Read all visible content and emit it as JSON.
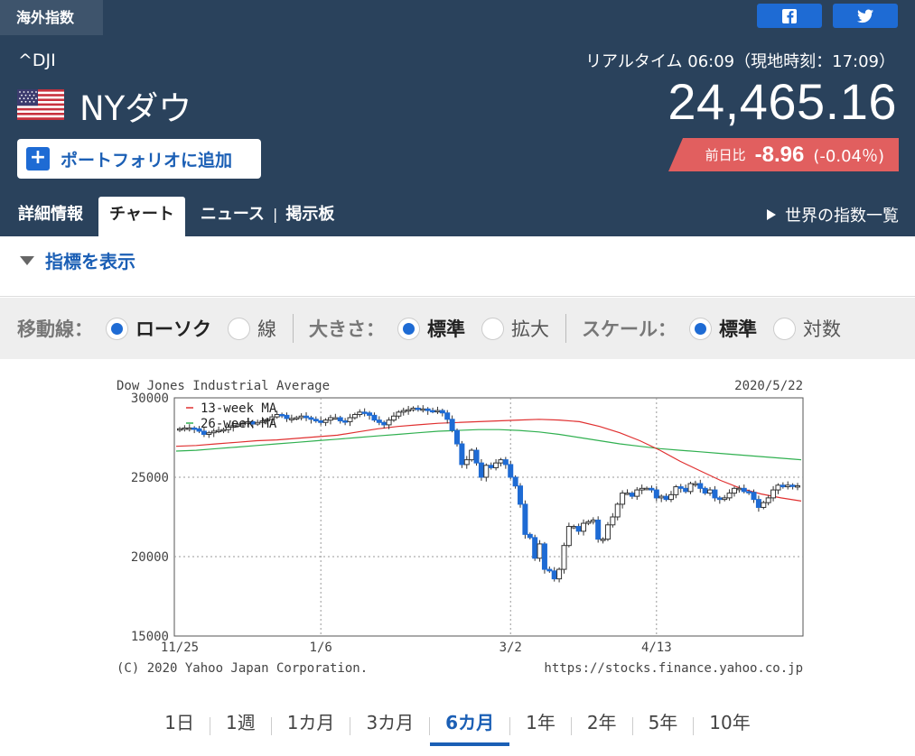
{
  "header": {
    "category_tab": "海外指数",
    "ticker": "^DJI",
    "name": "NYダウ",
    "realtime": "リアルタイム 06:09（現地時刻：17:09）",
    "price": "24,465.16",
    "change_label": "前日比",
    "change_value": "-8.96",
    "change_pct": "(-0.04％)",
    "portfolio_button": "ポートフォリオに追加",
    "world_link": "世界の指数一覧",
    "share_buttons": [
      "facebook-icon",
      "twitter-icon"
    ]
  },
  "nav": {
    "items": [
      "詳細情報",
      "チャート",
      "ニュース",
      "掲示板"
    ],
    "active": "チャート",
    "separator": "|"
  },
  "indicator_toggle": "指標を表示",
  "options": {
    "ma_label": "移動線：",
    "ma_options": [
      "ローソク",
      "線"
    ],
    "size_label": "大きさ：",
    "size_options": [
      "標準",
      "拡大"
    ],
    "scale_label": "スケール：",
    "scale_options": [
      "標準",
      "対数"
    ]
  },
  "chart_data": {
    "type": "candlestick",
    "title": "Dow Jones Industrial Average",
    "date": "2020/5/22",
    "footer_left": "(C) 2020 Yahoo Japan Corporation.",
    "footer_right": "https://stocks.finance.yahoo.co.jp",
    "ylim": [
      15000,
      30000
    ],
    "y_ticks": [
      15000,
      20000,
      25000,
      30000
    ],
    "x_ticks": [
      "11/25",
      "1/6",
      "3/2",
      "4/13"
    ],
    "legend": [
      "13-week MA",
      "26-week MA"
    ],
    "colors": {
      "up_fill": "#ffffff",
      "down_fill": "#1e6bd4",
      "ma13": "#e03030",
      "ma26": "#30b050"
    },
    "candles_close_approx": [
      28050,
      28100,
      28100,
      28050,
      27900,
      27700,
      27800,
      27900,
      27950,
      28000,
      28150,
      28250,
      28300,
      28400,
      28500,
      28350,
      28450,
      28550,
      28640,
      28800,
      28950,
      28900,
      28700,
      28700,
      28750,
      28850,
      28750,
      28650,
      28550,
      28450,
      28600,
      28750,
      28750,
      28550,
      28500,
      28750,
      28950,
      29100,
      29050,
      28900,
      28600,
      28450,
      28300,
      28600,
      28850,
      29100,
      29200,
      29250,
      29350,
      29300,
      29300,
      29200,
      29150,
      29200,
      29050,
      28650,
      27950,
      27100,
      25800,
      26100,
      26700,
      25900,
      25000,
      25750,
      25600,
      25900,
      26100,
      25800,
      25000,
      24450,
      23300,
      21400,
      21200,
      19900,
      20800,
      19200,
      19100,
      18600,
      19200,
      20700,
      21900,
      21900,
      21600,
      22100,
      22200,
      22300,
      21100,
      21100,
      22000,
      22500,
      23300,
      24000,
      24000,
      23800,
      24200,
      24300,
      24300,
      24200,
      23700,
      23800,
      23600,
      23900,
      24400,
      24300,
      24100,
      24600,
      24600,
      24300,
      24000,
      24200,
      23700,
      23600,
      23700,
      24000,
      24300,
      24300,
      24100,
      24050,
      23600,
      23100,
      23400,
      23700,
      24200,
      24500,
      24400,
      24500,
      24450,
      24465
    ],
    "ma13_approx": [
      26950,
      27000,
      27100,
      27200,
      27300,
      27350,
      27450,
      27550,
      27650,
      27850,
      28050,
      28200,
      28300,
      28400,
      28450,
      28500,
      28550,
      28600,
      28650,
      28600,
      28500,
      28200,
      27800,
      27300,
      26700,
      26000,
      25400,
      24800,
      24300,
      23950,
      23700,
      23500
    ],
    "ma26_approx": [
      26650,
      26700,
      26800,
      26900,
      27000,
      27100,
      27200,
      27300,
      27400,
      27500,
      27600,
      27700,
      27800,
      27900,
      27950,
      28000,
      28000,
      27950,
      27850,
      27700,
      27500,
      27300,
      27100,
      26950,
      26800,
      26700,
      26600,
      26500,
      26400,
      26300,
      26200,
      26100
    ]
  },
  "periods": {
    "items": [
      "1日",
      "1週",
      "1カ月",
      "3カ月",
      "6カ月",
      "1年",
      "2年",
      "5年",
      "10年"
    ],
    "selected": "6カ月"
  }
}
